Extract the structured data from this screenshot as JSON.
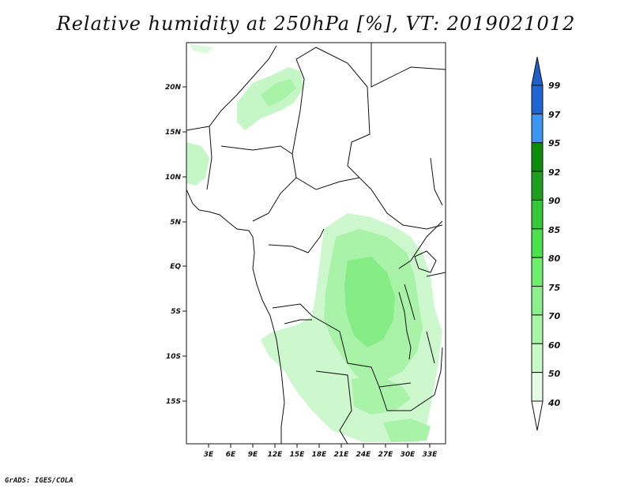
{
  "title": "Relative humidity at 250hPa [%], VT: 2019021012",
  "credit": "GrADS: IGES/COLA",
  "map": {
    "lat_ticks": [
      "20N",
      "15N",
      "10N",
      "5N",
      "EQ",
      "5S",
      "10S",
      "15S"
    ],
    "lon_ticks": [
      "3E",
      "6E",
      "9E",
      "12E",
      "15E",
      "18E",
      "21E",
      "24E",
      "27E",
      "30E",
      "33E"
    ]
  },
  "colorbar": {
    "levels": [
      "99",
      "97",
      "95",
      "92",
      "90",
      "85",
      "80",
      "75",
      "70",
      "60",
      "50",
      "40"
    ],
    "colors": [
      "#1e64d2",
      "#3c96f0",
      "#0a8c0a",
      "#1ea01e",
      "#37c837",
      "#4be14b",
      "#6ef06e",
      "#8cf08c",
      "#a8f5a8",
      "#c8fac8",
      "#e3fce3",
      "#ffffff"
    ],
    "top_color": "#1e5fc8",
    "bottom_color": "#ffffff"
  }
}
